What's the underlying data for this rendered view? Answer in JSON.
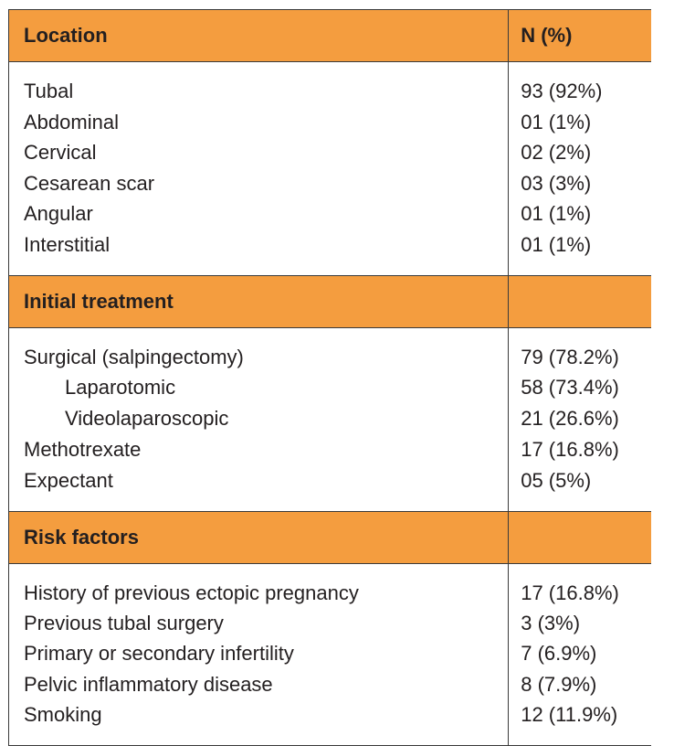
{
  "table": {
    "sections": [
      {
        "title": "Location",
        "value_header": "N (%)",
        "rows": [
          {
            "label": "Tubal",
            "value": "93 (92%)"
          },
          {
            "label": "Abdominal",
            "value": "01 (1%)"
          },
          {
            "label": "Cervical",
            "value": "02 (2%)"
          },
          {
            "label": "Cesarean scar",
            "value": "03 (3%)"
          },
          {
            "label": "Angular",
            "value": "01 (1%)"
          },
          {
            "label": "Interstitial",
            "value": "01 (1%)"
          }
        ]
      },
      {
        "title": "Initial treatment",
        "rows": [
          {
            "label": "Surgical (salpingectomy)",
            "value": "79 (78.2%)"
          },
          {
            "label": "Laparotomic",
            "value": "58 (73.4%)"
          },
          {
            "label": "Videolaparoscopic",
            "value": "21 (26.6%)"
          },
          {
            "label": "Methotrexate",
            "value": "17 (16.8%)"
          },
          {
            "label": "Expectant",
            "value": "05 (5%)"
          }
        ]
      },
      {
        "title": "Risk factors",
        "rows": [
          {
            "label": "History of previous ectopic pregnancy",
            "value": "17 (16.8%)"
          },
          {
            "label": "Previous tubal surgery",
            "value": "3 (3%)"
          },
          {
            "label": "Primary or secondary infertility",
            "value": "7 (6.9%)"
          },
          {
            "label": "Pelvic inflammatory disease",
            "value": "8 (7.9%)"
          },
          {
            "label": "Smoking",
            "value": "12 (11.9%)"
          }
        ]
      }
    ],
    "header_color": "#f49d3f"
  }
}
